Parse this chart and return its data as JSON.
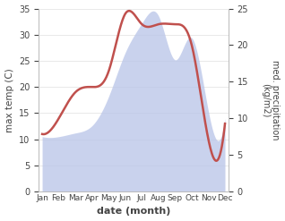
{
  "months": [
    "Jan",
    "Feb",
    "Mar",
    "Apr",
    "May",
    "Jun",
    "Jul",
    "Aug",
    "Sep",
    "Oct",
    "Nov",
    "Dec"
  ],
  "temp": [
    11,
    14,
    19,
    20,
    23,
    34,
    32,
    32,
    32,
    28,
    10,
    13
  ],
  "precip": [
    7.5,
    7.5,
    8,
    9,
    13,
    19,
    23,
    24,
    18,
    21,
    11,
    10
  ],
  "temp_color": "#c0504d",
  "precip_color": "#b8c4e8",
  "precip_fill_alpha": 0.75,
  "temp_ylim": [
    0,
    35
  ],
  "precip_ylim": [
    0,
    25
  ],
  "xlabel": "date (month)",
  "ylabel_left": "max temp (C)",
  "ylabel_right": "med. precipitation\n(kg/m2)",
  "bg_color": "#ffffff",
  "spine_color": "#bbbbbb",
  "tick_color": "#444444",
  "linewidth": 1.8
}
